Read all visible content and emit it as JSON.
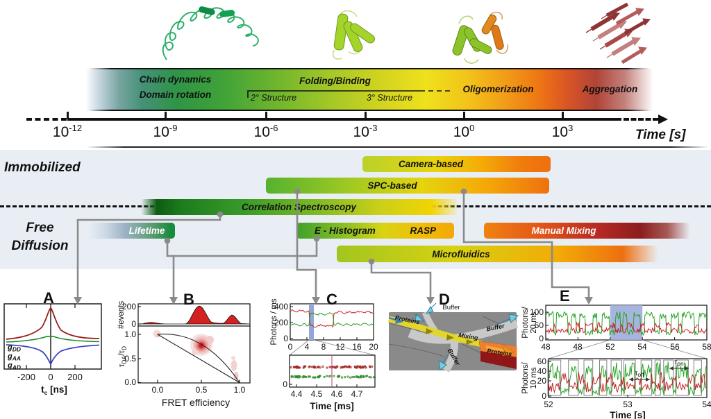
{
  "timeline": {
    "process_bar": {
      "chain_dynamics": "Chain dynamics",
      "domain_rotation": "Domain rotation",
      "folding_binding": "Folding/Binding",
      "secondary": "2° Structure",
      "tertiary": "3° Structure",
      "oligomerization": "Oligomerization",
      "aggregation": "Aggregation"
    },
    "axis": {
      "ticks": [
        {
          "b": "10",
          "e": "-12"
        },
        {
          "b": "10",
          "e": "-9"
        },
        {
          "b": "10",
          "e": "-6"
        },
        {
          "b": "10",
          "e": "-3"
        },
        {
          "b": "10",
          "e": "0"
        },
        {
          "b": "10",
          "e": "3"
        }
      ],
      "label": "Time [s]"
    }
  },
  "sections": {
    "immobilized": "Immobilized",
    "free": "Free",
    "diffusion": "Diffusion"
  },
  "bars": {
    "camera": "Camera-based",
    "spc": "SPC-based",
    "correlation": "Correlation Spectroscopy",
    "lifetime": "Lifetime",
    "e_histogram": "E - Histogram",
    "rasp": "RASP",
    "manual_mixing": "Manual Mixing",
    "microfluidics": "Microfluidics"
  },
  "panels": {
    "a": {
      "label": "A",
      "legend": [
        {
          "b": "g",
          "s": "DD",
          "color": "#8e8e8e"
        },
        {
          "b": "g",
          "s": "AA",
          "color": "#c42323"
        },
        {
          "b": "g",
          "s": "AD",
          "color": "#3b44c4"
        }
      ],
      "xticks": [
        "-200",
        "0",
        "200"
      ],
      "xlabel_b": "t",
      "xlabel_s": "c",
      "xlabel_r": " [ns]"
    },
    "b": {
      "label": "B",
      "ylabel_top": "#events",
      "yticks_top": [
        "200",
        "0"
      ],
      "ylabel_bot": {
        "t1": "τ",
        "s1": "DA",
        "t2": "/τ",
        "s2": "D"
      },
      "yticks_bot": [
        "1.0",
        "0.5",
        "0.0"
      ],
      "xticks": [
        "0.0",
        "0.5",
        "1.0"
      ],
      "xlabel": "FRET efficiency"
    },
    "c": {
      "label": "C",
      "ylabel": "Photons / ms",
      "yticks_top": [
        "400",
        "200",
        "0"
      ],
      "xticks_top": [
        "0",
        "4",
        "8",
        "12",
        "16",
        "20"
      ],
      "ytick_bot": "0",
      "xticks_bot": [
        "4.4",
        "4.5",
        "4.6",
        "4.7"
      ],
      "xlabel": "Time [ms]"
    },
    "d": {
      "label": "D",
      "buffer_top": "Buffer",
      "proteins_in": "Proteins",
      "mixing": "Mixing",
      "buffer_right": "Buffer",
      "buffer_bottom": "Buffer",
      "proteins_out": "Proteins"
    },
    "e": {
      "label": "E",
      "ylabel_top": [
        "Photons/",
        "20 ms"
      ],
      "yticks_top": [
        "100",
        "50",
        "0"
      ],
      "xticks_top": [
        "48",
        "48",
        "52",
        "54",
        "56",
        "58"
      ],
      "ylabel_bot": [
        "Photons/",
        "10 ms"
      ],
      "yticks_bot": [
        "60",
        "40",
        "20",
        "0"
      ],
      "xticks_bot": [
        "52",
        "53",
        "54"
      ],
      "xlabel": "Time [s]",
      "tau_off": {
        "t": "τ",
        "s": "off"
      },
      "tau_on": {
        "t": "τ",
        "s": "on"
      }
    }
  },
  "colors": {
    "connector_gray": "#8a8a8a",
    "hist_red": "#d42020",
    "trace_green": "#2c9c2c",
    "trace_red": "#c22626",
    "zoom_band_blue": "#9aabdc",
    "panel_bg": "#e9eef5"
  }
}
